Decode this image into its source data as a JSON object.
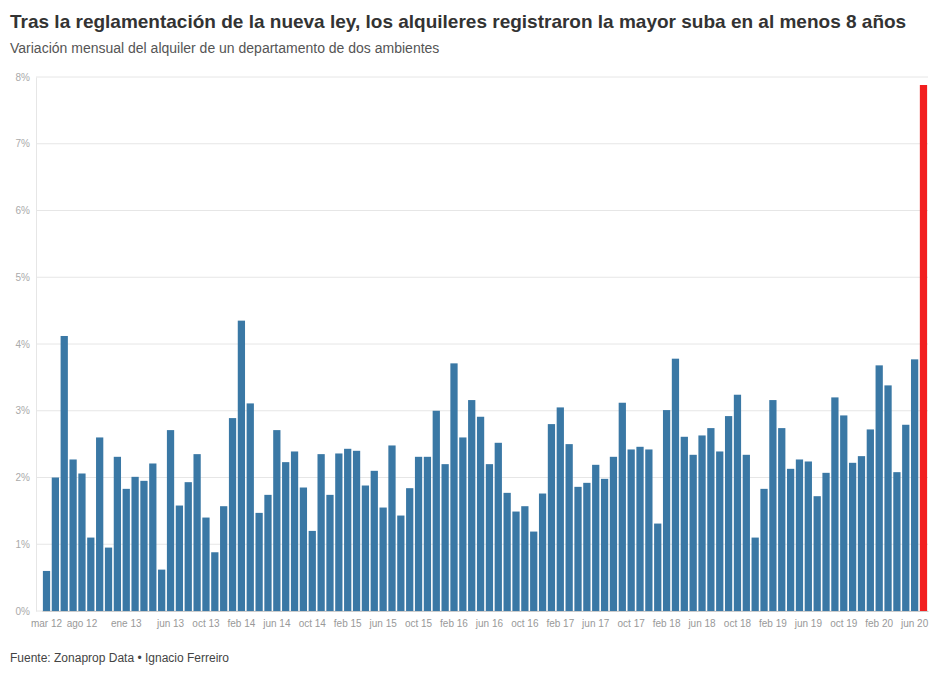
{
  "chart_data": {
    "type": "bar",
    "title": "Tras la reglamentación de la nueva ley, los alquileres registraron la mayor suba en al menos 8 años",
    "subtitle": "Variación mensual del alquiler de un departamento de dos ambientes",
    "source": "Fuente: Zonaprop Data • Ignacio Ferreiro",
    "categories": [
      "mar 12",
      null,
      null,
      null,
      "ago 12",
      null,
      null,
      null,
      null,
      "ene 13",
      null,
      null,
      null,
      null,
      "jun 13",
      null,
      null,
      null,
      "oct 13",
      null,
      null,
      null,
      "feb 14",
      null,
      null,
      null,
      "jun 14",
      null,
      null,
      null,
      "oct 14",
      null,
      null,
      null,
      "feb 15",
      null,
      null,
      null,
      "jun 15",
      null,
      null,
      null,
      "oct 15",
      null,
      null,
      null,
      "feb 16",
      null,
      null,
      null,
      "jun 16",
      null,
      null,
      null,
      "oct 16",
      null,
      null,
      null,
      "feb 17",
      null,
      null,
      null,
      "jun 17",
      null,
      null,
      null,
      "oct 17",
      null,
      null,
      null,
      "feb 18",
      null,
      null,
      null,
      "jun 18",
      null,
      null,
      null,
      "oct 18",
      null,
      null,
      null,
      "feb 19",
      null,
      null,
      null,
      "jun 19",
      null,
      null,
      null,
      "oct 19",
      null,
      null,
      null,
      "feb 20",
      null,
      null,
      null,
      "jun 20",
      null
    ],
    "values": [
      0.6,
      2.0,
      4.12,
      2.27,
      2.06,
      1.1,
      2.6,
      0.95,
      2.31,
      1.83,
      2.01,
      1.95,
      2.21,
      0.62,
      2.71,
      1.58,
      1.93,
      2.35,
      1.4,
      0.88,
      1.57,
      2.89,
      4.35,
      3.11,
      1.47,
      1.74,
      2.71,
      2.23,
      2.39,
      1.85,
      1.2,
      2.35,
      1.74,
      2.36,
      2.43,
      2.4,
      1.88,
      2.1,
      1.55,
      2.48,
      1.43,
      1.84,
      2.31,
      2.31,
      3.0,
      2.2,
      3.71,
      2.6,
      3.16,
      2.91,
      2.2,
      2.52,
      1.77,
      1.49,
      1.57,
      1.19,
      1.76,
      2.8,
      3.05,
      2.5,
      1.86,
      1.92,
      2.19,
      1.98,
      2.31,
      3.12,
      2.42,
      2.46,
      2.42,
      1.31,
      3.01,
      3.78,
      2.61,
      2.34,
      2.63,
      2.74,
      2.39,
      2.92,
      3.24,
      2.34,
      1.1,
      1.83,
      3.16,
      2.74,
      2.13,
      2.27,
      2.24,
      1.72,
      2.07,
      3.2,
      2.93,
      2.22,
      2.32,
      2.72,
      3.68,
      3.38,
      2.08,
      2.79,
      3.77,
      7.88
    ],
    "colors": [
      "#3a78a5",
      "#3a78a5",
      "#3a78a5",
      "#3a78a5",
      "#3a78a5",
      "#3a78a5",
      "#3a78a5",
      "#3a78a5",
      "#3a78a5",
      "#3a78a5",
      "#3a78a5",
      "#3a78a5",
      "#3a78a5",
      "#3a78a5",
      "#3a78a5",
      "#3a78a5",
      "#3a78a5",
      "#3a78a5",
      "#3a78a5",
      "#3a78a5",
      "#3a78a5",
      "#3a78a5",
      "#3a78a5",
      "#3a78a5",
      "#3a78a5",
      "#3a78a5",
      "#3a78a5",
      "#3a78a5",
      "#3a78a5",
      "#3a78a5",
      "#3a78a5",
      "#3a78a5",
      "#3a78a5",
      "#3a78a5",
      "#3a78a5",
      "#3a78a5",
      "#3a78a5",
      "#3a78a5",
      "#3a78a5",
      "#3a78a5",
      "#3a78a5",
      "#3a78a5",
      "#3a78a5",
      "#3a78a5",
      "#3a78a5",
      "#3a78a5",
      "#3a78a5",
      "#3a78a5",
      "#3a78a5",
      "#3a78a5",
      "#3a78a5",
      "#3a78a5",
      "#3a78a5",
      "#3a78a5",
      "#3a78a5",
      "#3a78a5",
      "#3a78a5",
      "#3a78a5",
      "#3a78a5",
      "#3a78a5",
      "#3a78a5",
      "#3a78a5",
      "#3a78a5",
      "#3a78a5",
      "#3a78a5",
      "#3a78a5",
      "#3a78a5",
      "#3a78a5",
      "#3a78a5",
      "#3a78a5",
      "#3a78a5",
      "#3a78a5",
      "#3a78a5",
      "#3a78a5",
      "#3a78a5",
      "#3a78a5",
      "#3a78a5",
      "#3a78a5",
      "#3a78a5",
      "#3a78a5",
      "#3a78a5",
      "#3a78a5",
      "#3a78a5",
      "#3a78a5",
      "#3a78a5",
      "#3a78a5",
      "#3a78a5",
      "#3a78a5",
      "#3a78a5",
      "#3a78a5",
      "#3a78a5",
      "#3a78a5",
      "#3a78a5",
      "#3a78a5",
      "#3a78a5",
      "#3a78a5",
      "#3a78a5",
      "#3a78a5",
      "#3a78a5",
      "#f21f1f"
    ],
    "ylim": [
      0,
      8
    ],
    "yticks": [
      {
        "value": 0,
        "label": "0%"
      },
      {
        "value": 1,
        "label": "1%"
      },
      {
        "value": 2,
        "label": "2%"
      },
      {
        "value": 3,
        "label": "3%"
      },
      {
        "value": 4,
        "label": "4%"
      },
      {
        "value": 5,
        "label": "5%"
      },
      {
        "value": 6,
        "label": "6%"
      },
      {
        "value": 7,
        "label": "7%"
      },
      {
        "value": 8,
        "label": "8%"
      }
    ],
    "grid": true
  }
}
